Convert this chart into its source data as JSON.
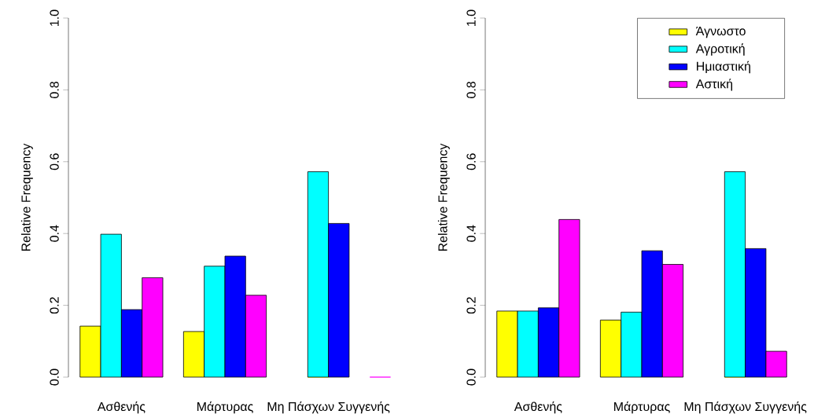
{
  "chart_data": [
    {
      "type": "bar",
      "ylabel": "Relative Frequency",
      "categories": [
        "Ασθενής",
        "Μάρτυρας",
        "Μη Πάσχων Συγγενής"
      ],
      "ylim": [
        0,
        1
      ],
      "yticks": [
        {
          "value": 0,
          "label": "0.0"
        },
        {
          "value": 0.2,
          "label": "0.2"
        },
        {
          "value": 0.4,
          "label": "0.4"
        },
        {
          "value": 0.6,
          "label": "0.6"
        },
        {
          "value": 0.8,
          "label": "0.8"
        },
        {
          "value": 1,
          "label": "1.0"
        }
      ],
      "legend": false,
      "series": [
        {
          "color": "#ffff00",
          "values": [
            0.142,
            0.127,
            0
          ]
        },
        {
          "color": "#00ffff",
          "values": [
            0.398,
            0.309,
            0.572
          ]
        },
        {
          "color": "#0000ff",
          "values": [
            0.188,
            0.337,
            0.428
          ]
        },
        {
          "color": "#ff00ff",
          "values": [
            0.277,
            0.228,
            0
          ]
        }
      ]
    },
    {
      "type": "bar",
      "ylabel": "Relative Frequency",
      "categories": [
        "Ασθενής",
        "Μάρτυρας",
        "Μη Πάσχων Συγγενής"
      ],
      "ylim": [
        0,
        1
      ],
      "yticks": [
        {
          "value": 0,
          "label": "0.0"
        },
        {
          "value": 0.2,
          "label": "0.2"
        },
        {
          "value": 0.4,
          "label": "0.4"
        },
        {
          "value": 0.6,
          "label": "0.6"
        },
        {
          "value": 0.8,
          "label": "0.8"
        },
        {
          "value": 1,
          "label": "1.0"
        }
      ],
      "legend": "top right",
      "series": [
        {
          "name": "Άγνωστο",
          "color": "#ffff00",
          "values": [
            0.184,
            0.159,
            0
          ]
        },
        {
          "name": "Αγροτική",
          "color": "#00ffff",
          "values": [
            0.184,
            0.181,
            0.572
          ]
        },
        {
          "name": "Ημιαστική",
          "color": "#0000ff",
          "values": [
            0.193,
            0.352,
            0.358
          ]
        },
        {
          "name": "Αστική",
          "color": "#ff00ff",
          "values": [
            0.439,
            0.314,
            0.072
          ]
        }
      ]
    }
  ]
}
